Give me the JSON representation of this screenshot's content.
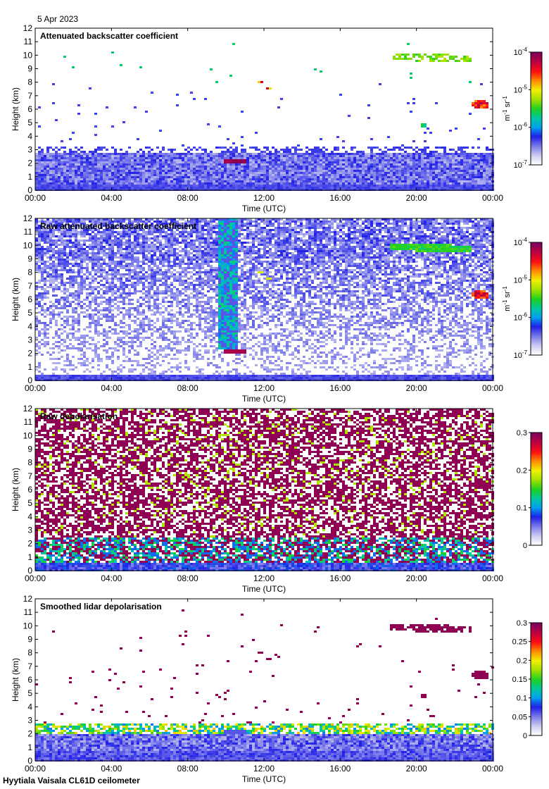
{
  "header": {
    "date": "5 Apr 2023"
  },
  "footer": {
    "site": "Hyytiala Vaisala CL61D ceilometer"
  },
  "colors": {
    "cmap": [
      "#ffffff",
      "#c9c9f2",
      "#7878ea",
      "#2020e6",
      "#00a0f0",
      "#00c8a0",
      "#20d020",
      "#a0e000",
      "#f0f000",
      "#ff9000",
      "#ff1010",
      "#c00040",
      "#80005a"
    ]
  },
  "chart_data": [
    {
      "type": "heatmap",
      "title": "Attenuated backscatter coefficient",
      "xlabel": "Time (UTC)",
      "ylabel": "Height (km)",
      "xticks": [
        "00:00",
        "04:00",
        "08:00",
        "12:00",
        "16:00",
        "20:00",
        "00:00"
      ],
      "xlim_hours": [
        0,
        24
      ],
      "ylim": [
        0,
        12
      ],
      "yticks": [
        0,
        1,
        2,
        3,
        4,
        5,
        6,
        7,
        8,
        9,
        10,
        11,
        12
      ],
      "colorbar": {
        "scale": "log",
        "range": [
          1e-07,
          0.0001
        ],
        "ticks": [
          "10-7",
          "10-6",
          "10-5",
          "10-4"
        ],
        "unit": "m-1 sr-1"
      },
      "features": [
        {
          "name": "boundary layer aerosol",
          "hours": [
            0,
            24
          ],
          "height_km": [
            0,
            3
          ],
          "level": 0.2
        },
        {
          "name": "low cloud",
          "hours": [
            9.8,
            11
          ],
          "height_km": [
            2.1,
            2.3
          ],
          "level": 1.0
        },
        {
          "name": "cirrus",
          "hours": [
            18.5,
            22.7
          ],
          "height_km": [
            9.7,
            10.2
          ],
          "level": 0.6
        },
        {
          "name": "cloud patch",
          "hours": [
            23,
            23.6
          ],
          "height_km": [
            6,
            6.8
          ],
          "level": 0.95
        }
      ]
    },
    {
      "type": "heatmap",
      "title": "Raw attenuated backscatter coefficient",
      "xlabel": "Time (UTC)",
      "ylabel": "Height (km)",
      "xticks": [
        "00:00",
        "04:00",
        "08:00",
        "12:00",
        "16:00",
        "20:00",
        "00:00"
      ],
      "xlim_hours": [
        0,
        24
      ],
      "ylim": [
        0,
        12
      ],
      "yticks": [
        0,
        1,
        2,
        3,
        4,
        5,
        6,
        7,
        8,
        9,
        10,
        11,
        12
      ],
      "colorbar": {
        "scale": "log",
        "range": [
          1e-07,
          0.0001
        ],
        "ticks": [
          "10-7",
          "10-6",
          "10-5",
          "10-4"
        ],
        "unit": "m-1 sr-1"
      }
    },
    {
      "type": "heatmap",
      "title": "Raw depolarisation",
      "xlabel": "Time (UTC)",
      "ylabel": "Height (km)",
      "xticks": [
        "00:00",
        "04:00",
        "08:00",
        "12:00",
        "16:00",
        "20:00",
        "00:00"
      ],
      "xlim_hours": [
        0,
        24
      ],
      "ylim": [
        0,
        12
      ],
      "yticks": [
        0,
        1,
        2,
        3,
        4,
        5,
        6,
        7,
        8,
        9,
        10,
        11,
        12
      ],
      "colorbar": {
        "scale": "linear",
        "range": [
          0,
          0.3
        ],
        "ticks": [
          "0",
          "0.1",
          "0.2",
          "0.3"
        ],
        "unit": ""
      }
    },
    {
      "type": "heatmap",
      "title": "Smoothed lidar depolarisation",
      "xlabel": "Time (UTC)",
      "ylabel": "Height (km)",
      "xticks": [
        "00:00",
        "04:00",
        "08:00",
        "12:00",
        "16:00",
        "20:00",
        "00:00"
      ],
      "xlim_hours": [
        0,
        24
      ],
      "ylim": [
        0,
        12
      ],
      "yticks": [
        0,
        1,
        2,
        3,
        4,
        5,
        6,
        7,
        8,
        9,
        10,
        11,
        12
      ],
      "colorbar": {
        "scale": "linear",
        "range": [
          0,
          0.3
        ],
        "ticks": [
          "0",
          "0.05",
          "0.1",
          "0.15",
          "0.2",
          "0.25",
          "0.3"
        ],
        "unit": ""
      }
    }
  ]
}
